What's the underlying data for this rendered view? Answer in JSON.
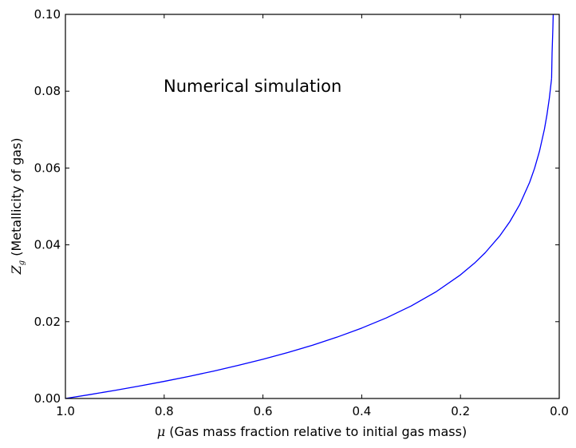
{
  "chart_data": {
    "type": "line",
    "title": "",
    "xlabel_symbol": "μ",
    "xlabel_text": " (Gas mass fraction relative to initial gas mass)",
    "ylabel_symbol": "Z",
    "ylabel_subscript": "g",
    "ylabel_text": " (Metallicity of gas)",
    "xlim": [
      1.0,
      0.0
    ],
    "ylim": [
      0.0,
      0.1
    ],
    "x_inverted": true,
    "xticks": [
      1.0,
      0.8,
      0.6,
      0.4,
      0.2,
      0.0
    ],
    "xtick_labels": [
      "1.0",
      "0.8",
      "0.6",
      "0.4",
      "0.2",
      "0.0"
    ],
    "yticks": [
      0.0,
      0.02,
      0.04,
      0.06,
      0.08,
      0.1
    ],
    "ytick_labels": [
      "0.00",
      "0.02",
      "0.04",
      "0.06",
      "0.08",
      "0.10"
    ],
    "grid": false,
    "annotation": "Numerical simulation",
    "series": [
      {
        "color": "#0000ff",
        "x": [
          1.0,
          0.95,
          0.9,
          0.85,
          0.8,
          0.75,
          0.7,
          0.65,
          0.6,
          0.55,
          0.5,
          0.45,
          0.4,
          0.35,
          0.3,
          0.25,
          0.2,
          0.17,
          0.15,
          0.12,
          0.1,
          0.08,
          0.06,
          0.05,
          0.04,
          0.03,
          0.025,
          0.02,
          0.0155
        ],
        "y": [
          0.0,
          0.00103,
          0.00211,
          0.00325,
          0.00446,
          0.00575,
          0.00713,
          0.00862,
          0.01022,
          0.01196,
          0.01386,
          0.01597,
          0.01833,
          0.02099,
          0.02408,
          0.02773,
          0.03219,
          0.03543,
          0.03794,
          0.0424,
          0.04605,
          0.05051,
          0.05626,
          0.05991,
          0.06438,
          0.07012,
          0.07377,
          0.07824,
          0.08333
        ]
      },
      {
        "color": "#0000ff",
        "x": [
          0.0155,
          0.0145,
          0.013,
          0.0122
        ],
        "y": [
          0.08333,
          0.09,
          0.096,
          0.1
        ]
      }
    ]
  }
}
